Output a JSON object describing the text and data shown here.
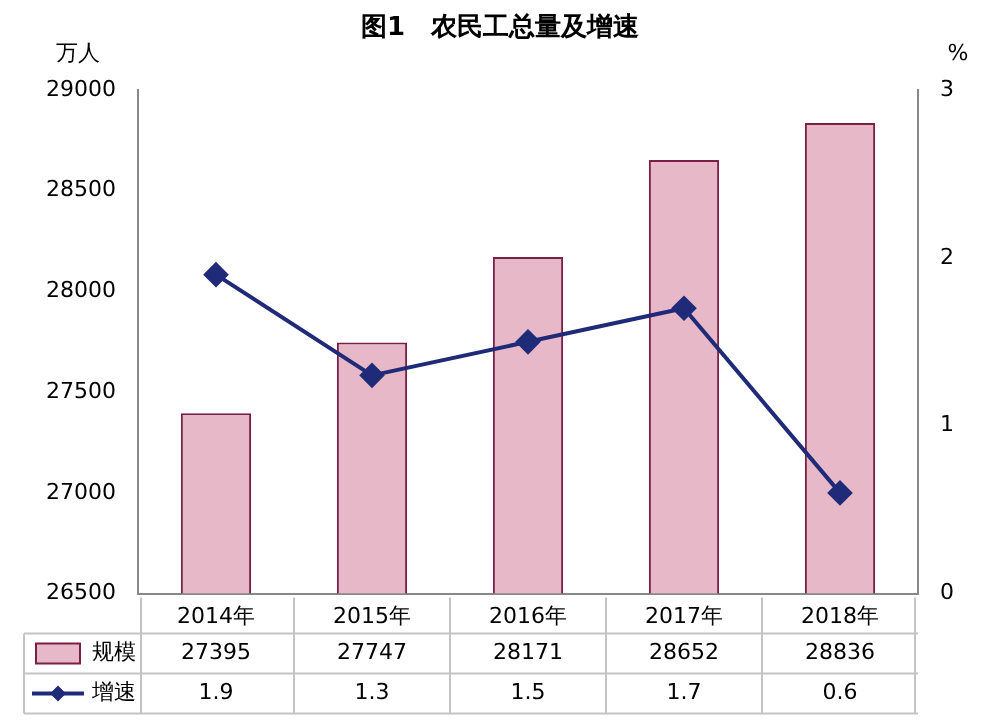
{
  "chart_data": {
    "type": "bar",
    "title": "图1　农民工总量及增速",
    "ylabel": "万人",
    "y2label": "%",
    "categories": [
      "2014年",
      "2015年",
      "2016年",
      "2017年",
      "2018年"
    ],
    "series": [
      {
        "name": "规模",
        "color": "#e6b8c8",
        "values": [
          27395,
          27747,
          28171,
          28652,
          28836
        ]
      },
      {
        "name": "增速",
        "type": "line",
        "axis": "y2",
        "color": "#1f2a78",
        "values": [
          1.9,
          1.3,
          1.5,
          1.7,
          0.6
        ]
      }
    ],
    "ylim": [
      26500,
      29000
    ],
    "yticks": [
      26500,
      27000,
      27500,
      28000,
      28500,
      29000
    ],
    "y2lim": [
      0,
      3
    ],
    "y2ticks": [
      0,
      1,
      2,
      3
    ],
    "grid": false,
    "legend": "bottom",
    "marker": "diamond",
    "line_style": "solid",
    "data_labels": true
  }
}
